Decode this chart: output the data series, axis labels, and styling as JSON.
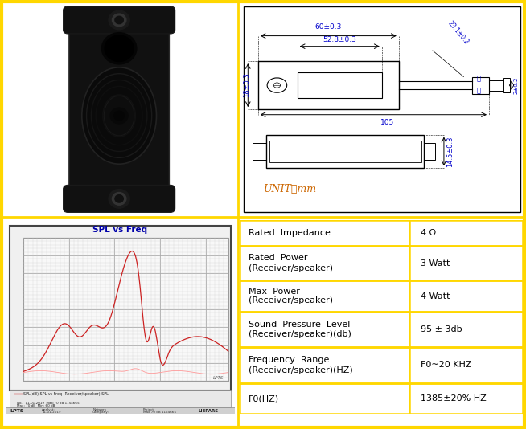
{
  "bg_color": "#ffffff",
  "border_color": "#FFD700",
  "table_rows": [
    {
      "label": "Rated  Impedance",
      "value": "4 Ω"
    },
    {
      "label": "Rated  Power\n(Receiver/speaker)",
      "value": "3 Watt"
    },
    {
      "label": "Max  Power\n(Receiver/speaker)",
      "value": "4 Watt"
    },
    {
      "label": "Sound  Pressure  Level\n(Receiver/speaker)(db)",
      "value": "95 ± 3db"
    },
    {
      "label": "Frequency  Range\n(Receiver/speaker)(HZ)",
      "value": "F0~20 KHZ"
    },
    {
      "label": "F0(HZ)",
      "value": "1385±20% HZ"
    }
  ],
  "table_border_color": "#FFD700",
  "table_text_color": "#000000",
  "table_font": "Courier New",
  "table_fontsize": 8.0,
  "outer_border_color": "#FFD700",
  "draw_border_color": "#000000",
  "dim_color": "#0000cc",
  "unit_color": "#cc6600"
}
